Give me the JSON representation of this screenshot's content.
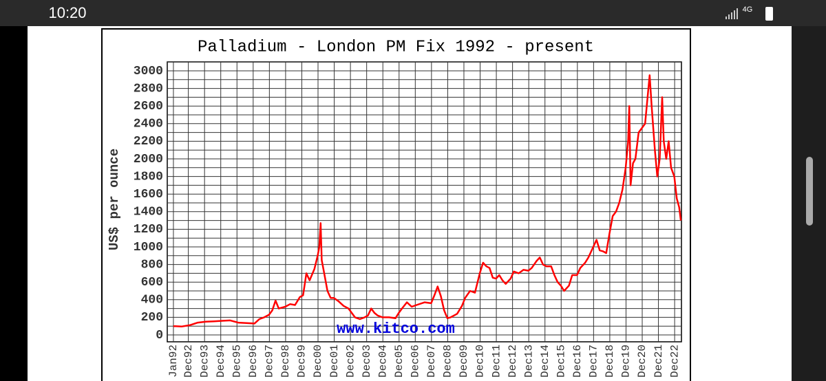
{
  "status_bar": {
    "time": "10:20",
    "network": "4G"
  },
  "chart_data": {
    "type": "line",
    "title": "Palladium - London PM Fix 1992 - present",
    "y_label": "US$ per ounce",
    "watermark": "www.kitco.com",
    "color": "#ff0000",
    "grid": true,
    "xlim": [
      1991.62,
      2023.34
    ],
    "ylim": [
      0,
      3000
    ],
    "yticks": [
      0,
      200,
      400,
      600,
      800,
      1000,
      1200,
      1400,
      1600,
      1800,
      2000,
      2200,
      2400,
      2600,
      2800,
      3000
    ],
    "y_minor_ticks": [
      100,
      300,
      500,
      700,
      900,
      1100,
      1300,
      1500,
      1700,
      1900,
      2100,
      2300,
      2500,
      2700,
      2900,
      3100
    ],
    "xticks": [
      {
        "value": 1992.0,
        "label": "Jan92"
      },
      {
        "value": 1992.92,
        "label": "Dec92"
      },
      {
        "value": 1993.92,
        "label": "Dec93"
      },
      {
        "value": 1994.92,
        "label": "Dec94"
      },
      {
        "value": 1995.92,
        "label": "Dec95"
      },
      {
        "value": 1996.92,
        "label": "Dec96"
      },
      {
        "value": 1997.92,
        "label": "Dec97"
      },
      {
        "value": 1998.92,
        "label": "Dec98"
      },
      {
        "value": 1999.92,
        "label": "Dec99"
      },
      {
        "value": 2000.92,
        "label": "Dec00"
      },
      {
        "value": 2001.92,
        "label": "Dec01"
      },
      {
        "value": 2002.92,
        "label": "Dec02"
      },
      {
        "value": 2003.92,
        "label": "Dec03"
      },
      {
        "value": 2004.92,
        "label": "Dec04"
      },
      {
        "value": 2005.92,
        "label": "Dec05"
      },
      {
        "value": 2006.92,
        "label": "Dec06"
      },
      {
        "value": 2007.92,
        "label": "Dec07"
      },
      {
        "value": 2008.92,
        "label": "Dec08"
      },
      {
        "value": 2009.92,
        "label": "Dec09"
      },
      {
        "value": 2010.92,
        "label": "Dec10"
      },
      {
        "value": 2011.92,
        "label": "Dec11"
      },
      {
        "value": 2012.92,
        "label": "Dec12"
      },
      {
        "value": 2013.92,
        "label": "Dec13"
      },
      {
        "value": 2014.92,
        "label": "Dec14"
      },
      {
        "value": 2015.92,
        "label": "Dec15"
      },
      {
        "value": 2016.92,
        "label": "Dec16"
      },
      {
        "value": 2017.92,
        "label": "Dec17"
      },
      {
        "value": 2018.92,
        "label": "Dec18"
      },
      {
        "value": 2019.92,
        "label": "Dec19"
      },
      {
        "value": 2020.92,
        "label": "Dec20"
      },
      {
        "value": 2021.92,
        "label": "Dec21"
      },
      {
        "value": 2022.92,
        "label": "Dec22"
      }
    ],
    "x": [
      1992.0,
      1992.5,
      1993.0,
      1993.5,
      1994.0,
      1994.5,
      1995.0,
      1995.5,
      1996.0,
      1996.5,
      1997.0,
      1997.3,
      1997.6,
      1997.9,
      1998.1,
      1998.3,
      1998.5,
      1998.9,
      1999.2,
      1999.5,
      1999.8,
      2000.0,
      2000.2,
      2000.4,
      2000.7,
      2000.9,
      2001.0,
      2001.08,
      2001.15,
      2001.3,
      2001.5,
      2001.7,
      2001.9,
      2002.2,
      2002.5,
      2002.8,
      2003.0,
      2003.2,
      2003.5,
      2003.8,
      2004.0,
      2004.2,
      2004.4,
      2004.6,
      2004.9,
      2005.3,
      2005.7,
      2005.9,
      2006.1,
      2006.4,
      2006.7,
      2007.0,
      2007.5,
      2007.9,
      2008.1,
      2008.3,
      2008.5,
      2008.7,
      2008.9,
      2009.1,
      2009.5,
      2009.8,
      2010.0,
      2010.3,
      2010.6,
      2010.9,
      2011.1,
      2011.3,
      2011.5,
      2011.7,
      2011.9,
      2012.1,
      2012.3,
      2012.5,
      2012.8,
      2013.0,
      2013.3,
      2013.6,
      2013.9,
      2014.1,
      2014.4,
      2014.6,
      2014.8,
      2015.0,
      2015.3,
      2015.5,
      2015.7,
      2015.9,
      2016.1,
      2016.4,
      2016.6,
      2016.9,
      2017.1,
      2017.4,
      2017.6,
      2017.9,
      2018.1,
      2018.3,
      2018.5,
      2018.7,
      2018.9,
      2019.1,
      2019.3,
      2019.5,
      2019.7,
      2019.9,
      2020.05,
      2020.12,
      2020.2,
      2020.35,
      2020.5,
      2020.7,
      2020.9,
      2021.1,
      2021.3,
      2021.38,
      2021.5,
      2021.7,
      2021.85,
      2022.0,
      2022.15,
      2022.25,
      2022.4,
      2022.55,
      2022.7,
      2022.9,
      2023.05,
      2023.2,
      2023.3
    ],
    "values": [
      100,
      95,
      110,
      140,
      150,
      155,
      160,
      165,
      140,
      135,
      130,
      180,
      200,
      230,
      280,
      390,
      300,
      320,
      350,
      340,
      430,
      450,
      700,
      620,
      750,
      900,
      1000,
      1270,
      850,
      700,
      500,
      420,
      420,
      380,
      330,
      300,
      250,
      200,
      180,
      200,
      220,
      300,
      250,
      220,
      200,
      200,
      190,
      250,
      300,
      370,
      320,
      340,
      370,
      360,
      450,
      550,
      440,
      280,
      190,
      200,
      240,
      330,
      420,
      500,
      480,
      700,
      820,
      780,
      760,
      650,
      640,
      680,
      620,
      580,
      640,
      720,
      700,
      740,
      730,
      760,
      840,
      880,
      800,
      780,
      780,
      680,
      600,
      560,
      500,
      560,
      680,
      680,
      760,
      820,
      880,
      1000,
      1080,
      960,
      950,
      930,
      1150,
      1350,
      1400,
      1500,
      1650,
      1900,
      2200,
      2600,
      1700,
      1950,
      2000,
      2300,
      2350,
      2400,
      2800,
      2950,
      2600,
      2100,
      1800,
      2000,
      2700,
      2200,
      2000,
      2200,
      1900,
      1800,
      1550,
      1450,
      1300
    ]
  }
}
